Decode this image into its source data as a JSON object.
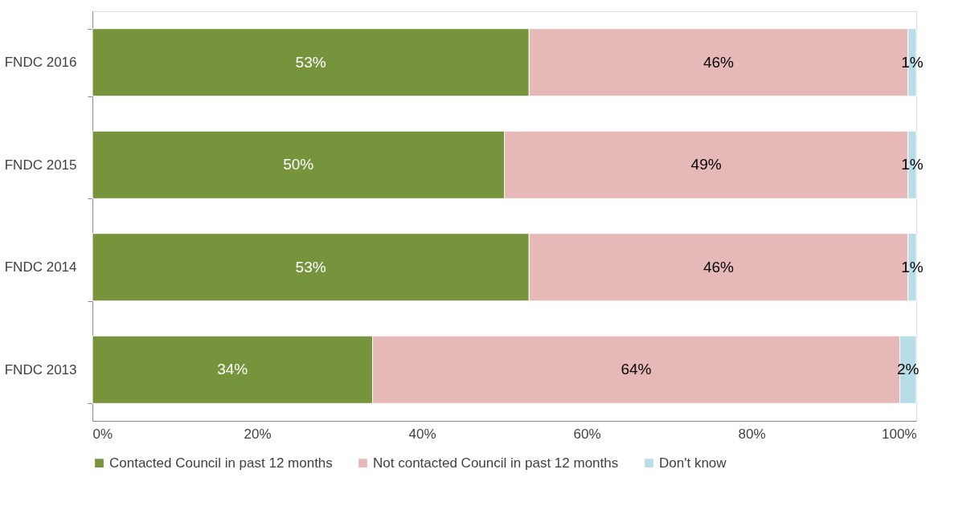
{
  "chart_data": {
    "type": "bar",
    "orientation": "horizontal",
    "stacked": true,
    "categories": [
      "FNDC 2016",
      "FNDC 2015",
      "FNDC 2014",
      "FNDC 2013"
    ],
    "series": [
      {
        "name": "Contacted Council in past 12 months",
        "color": "#77933c",
        "values": [
          53,
          50,
          53,
          34
        ],
        "value_labels": [
          "53%",
          "50%",
          "53%",
          "34%"
        ]
      },
      {
        "name": "Not contacted Council in past 12 months",
        "color": "#e6b9b8",
        "values": [
          46,
          49,
          46,
          64
        ],
        "value_labels": [
          "46%",
          "49%",
          "46%",
          "64%"
        ]
      },
      {
        "name": "Don't know",
        "color": "#b7dde8",
        "values": [
          1,
          1,
          1,
          2
        ],
        "value_labels": [
          "1%",
          "1%",
          "1%",
          "2%"
        ]
      }
    ],
    "xlim": [
      0,
      100
    ],
    "xticks": [
      {
        "value": 0,
        "label": "0%"
      },
      {
        "value": 20,
        "label": "20%"
      },
      {
        "value": 40,
        "label": "40%"
      },
      {
        "value": 60,
        "label": "60%"
      },
      {
        "value": 80,
        "label": "80%"
      },
      {
        "value": 100,
        "label": "100%"
      }
    ],
    "grid": false,
    "legend": "bottom"
  }
}
